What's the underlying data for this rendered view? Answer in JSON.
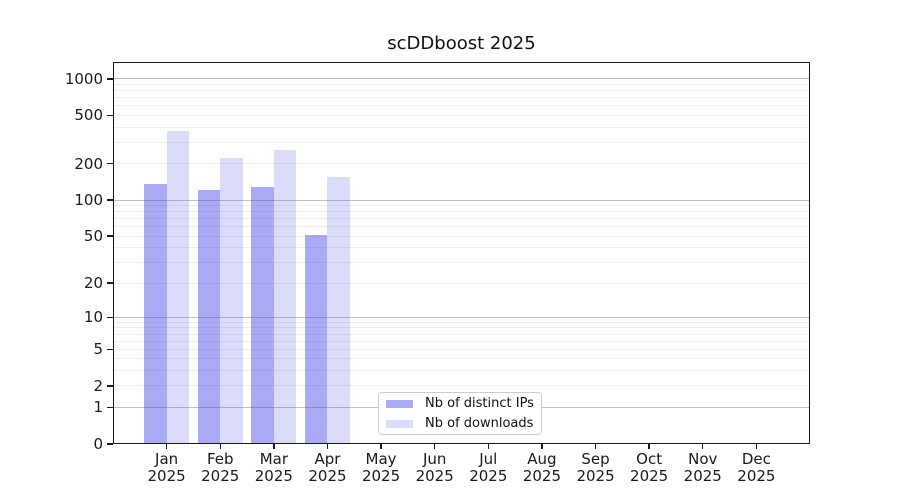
{
  "chart_data": {
    "type": "bar",
    "title": "scDDboost 2025",
    "categories": [
      "Jan",
      "Feb",
      "Mar",
      "Apr",
      "May",
      "Jun",
      "Jul",
      "Aug",
      "Sep",
      "Oct",
      "Nov",
      "Dec"
    ],
    "year": "2025",
    "series": [
      {
        "name": "Nb of distinct IPs",
        "color": "#a9a9f5",
        "values": [
          135,
          122,
          129,
          51,
          null,
          null,
          null,
          null,
          null,
          null,
          null,
          null
        ]
      },
      {
        "name": "Nb of downloads",
        "color": "#dbdbfa",
        "values": [
          372,
          225,
          260,
          155,
          null,
          null,
          null,
          null,
          null,
          null,
          null,
          null
        ]
      }
    ],
    "y_ticks": [
      0,
      1,
      2,
      5,
      10,
      20,
      50,
      100,
      200,
      500,
      1000
    ],
    "y_scale": "log10(1+v)",
    "ylim": [
      0,
      1380
    ],
    "grid": "horizontal",
    "legend_position": "lower center",
    "colors": {
      "frame": "#1a1a1a",
      "major_grid": "#b3b3b3",
      "minor_grid": "#e9e9e9",
      "background": "#ffffff"
    }
  }
}
